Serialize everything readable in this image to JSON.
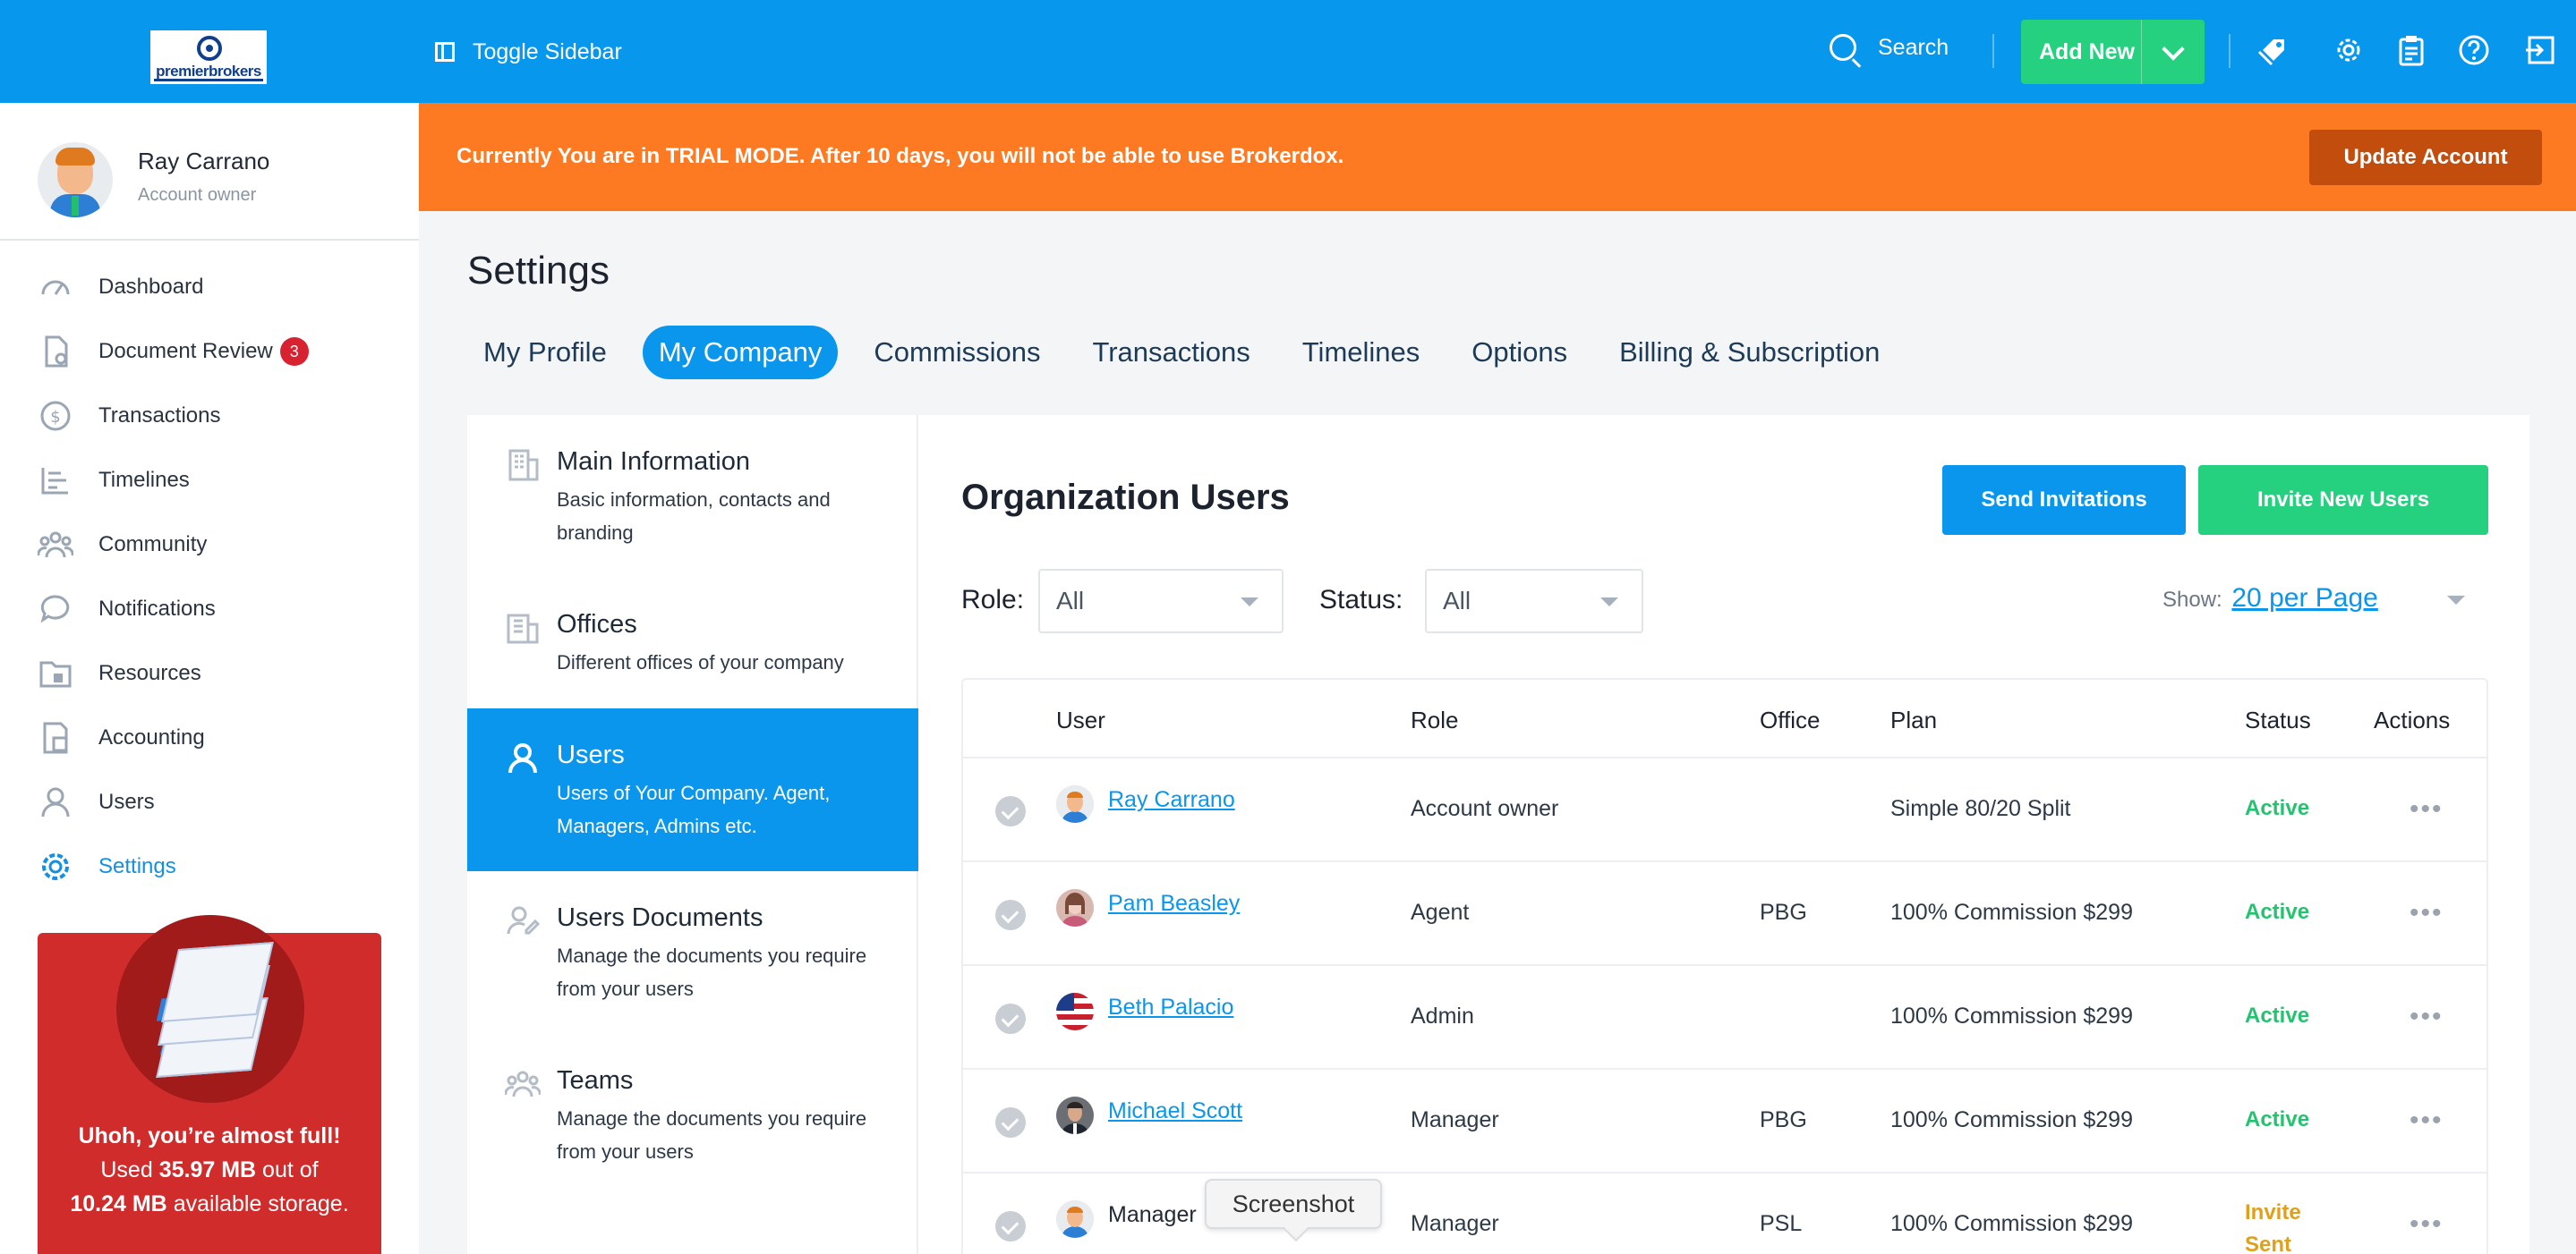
{
  "topbar": {
    "logo_text": "premierbrokers",
    "toggle_sidebar": "Toggle Sidebar",
    "search_label": "Search",
    "add_new": "Add New",
    "icons": [
      "tag-icon",
      "gear-icon",
      "clipboard-icon",
      "help-icon",
      "logout-icon"
    ]
  },
  "profile": {
    "name": "Ray Carrano",
    "role": "Account owner"
  },
  "sidebar": {
    "items": [
      {
        "label": "Dashboard",
        "icon": "gauge-icon"
      },
      {
        "label": "Document Review",
        "icon": "document-review-icon",
        "badge": "3"
      },
      {
        "label": "Transactions",
        "icon": "dollar-icon"
      },
      {
        "label": "Timelines",
        "icon": "timeline-icon"
      },
      {
        "label": "Community",
        "icon": "community-icon"
      },
      {
        "label": "Notifications",
        "icon": "chat-bubble-icon"
      },
      {
        "label": "Resources",
        "icon": "folder-icon"
      },
      {
        "label": "Accounting",
        "icon": "accounting-icon"
      },
      {
        "label": "Users",
        "icon": "user-icon"
      },
      {
        "label": "Settings",
        "icon": "gear-icon",
        "active": true
      }
    ],
    "storage": {
      "headline": "Uhoh, you’re almost full!",
      "used_prefix": "Used",
      "used": "35.97 MB",
      "used_mid": "out of",
      "available": "10.24 MB",
      "available_suffix": "available storage."
    }
  },
  "trial": {
    "message": "Currently You are in TRIAL MODE. After 10 days, you will not be able to use Brokerdox.",
    "button": "Update Account"
  },
  "page": {
    "title": "Settings",
    "tabs": [
      "My Profile",
      "My Company",
      "Commissions",
      "Transactions",
      "Timelines",
      "Options",
      "Billing & Subscription"
    ],
    "active_tab": "My Company"
  },
  "subnav": [
    {
      "title": "Main Information",
      "desc": "Basic information, contacts and branding",
      "icon": "building-icon"
    },
    {
      "title": "Offices",
      "desc": "Different offices of your company",
      "icon": "office-icon"
    },
    {
      "title": "Users",
      "desc": "Users of Your Company. Agent, Managers, Admins etc.",
      "icon": "user-icon",
      "active": true
    },
    {
      "title": "Users Documents",
      "desc": "Manage the documents you require from your users",
      "icon": "user-document-icon"
    },
    {
      "title": "Teams",
      "desc": "Manage the documents you require from your users",
      "icon": "team-icon"
    }
  ],
  "org": {
    "title": "Organization Users",
    "send_invitations": "Send Invitations",
    "invite_new_users": "Invite New Users",
    "role_label": "Role:",
    "role_value": "All",
    "status_label": "Status:",
    "status_value": "All",
    "show_label": "Show:",
    "show_value": "20 per Page"
  },
  "table": {
    "headers": [
      "User",
      "Role",
      "Office",
      "Plan",
      "Status",
      "Actions"
    ],
    "rows": [
      {
        "user": "Ray Carrano",
        "role": "Account owner",
        "office": "",
        "plan": "Simple 80/20 Split",
        "status": "Active",
        "linked": true
      },
      {
        "user": "Pam Beasley",
        "role": "Agent",
        "office": "PBG",
        "plan": "100% Commission $299",
        "status": "Active",
        "linked": true
      },
      {
        "user": "Beth Palacio",
        "role": "Admin",
        "office": "",
        "plan": "100% Commission $299",
        "status": "Active",
        "linked": true
      },
      {
        "user": "Michael Scott",
        "role": "Manager",
        "office": "PBG",
        "plan": "100% Commission $299",
        "status": "Active",
        "linked": true
      },
      {
        "user": "Manager",
        "role": "Manager",
        "office": "PSL",
        "plan": "100% Commission $299",
        "status": "Invite Sent",
        "linked": false
      }
    ],
    "actions_glyph": "•••"
  },
  "tooltip": {
    "text": "Screenshot"
  },
  "colors": {
    "primary": "#0797ec",
    "green": "#25d17e",
    "orange": "#fd7a23",
    "red": "#d12c2c"
  }
}
